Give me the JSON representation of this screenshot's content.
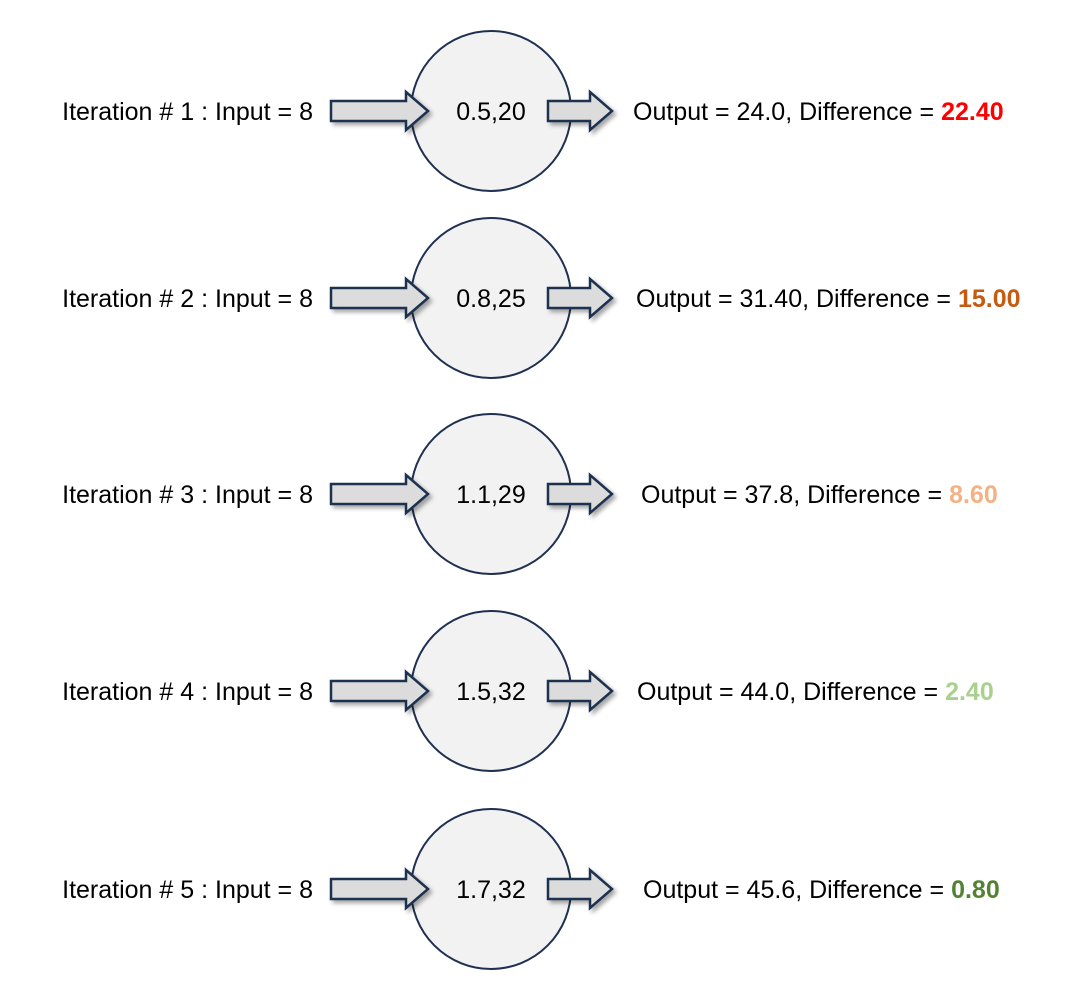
{
  "iterations": [
    {
      "label": "Iteration # 1 : Input = 8",
      "node": "0.5,20",
      "output": "Output = 24.0, Difference = ",
      "difference": "22.40",
      "color": "#ff0000"
    },
    {
      "label": "Iteration # 2 : Input = 8",
      "node": "0.8,25",
      "output": "Output = 31.40, Difference = ",
      "difference": "15.00",
      "color": "#c55a11"
    },
    {
      "label": "Iteration # 3 : Input = 8",
      "node": "1.1,29",
      "output": "Output = 37.8, Difference = ",
      "difference": "8.60",
      "color": "#f4b183"
    },
    {
      "label": "Iteration # 4 : Input = 8",
      "node": "1.5,32",
      "output": "Output = 44.0, Difference = ",
      "difference": "2.40",
      "color": "#a9d18e"
    },
    {
      "label": "Iteration # 5 : Input = 8",
      "node": "1.7,32",
      "output": "Output = 45.6, Difference = ",
      "difference": "0.80",
      "color": "#548235"
    }
  ]
}
